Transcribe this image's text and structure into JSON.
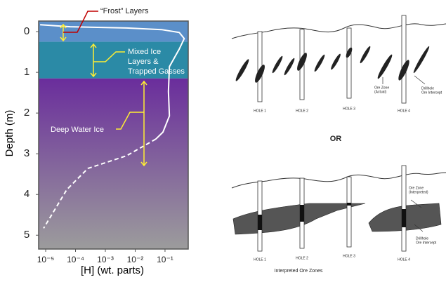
{
  "chart_data": {
    "type": "line",
    "xlabel": "[H] (wt. parts)",
    "ylabel": "Depth (m)",
    "xscale": "log",
    "xlim": [
      5.8e-06,
      0.6
    ],
    "ylim": [
      -0.26,
      5.34
    ],
    "y_inverted": true,
    "xticks": [
      {
        "value": 1e-05,
        "label": "10⁻⁵"
      },
      {
        "value": 0.0001,
        "label": "10⁻⁴"
      },
      {
        "value": 0.001,
        "label": "10⁻³"
      },
      {
        "value": 0.01,
        "label": "10⁻²"
      },
      {
        "value": 0.1,
        "label": "10⁻¹"
      }
    ],
    "yticks": [
      0,
      1,
      2,
      3,
      4,
      5
    ],
    "regions": [
      {
        "from": -0.26,
        "to": 0.25,
        "colors": [
          "#5b8fc9",
          "#5b8fc9"
        ]
      },
      {
        "from": 0.25,
        "to": 1.15,
        "colors": [
          "#2b8aa6",
          "#2b8aa6"
        ]
      },
      {
        "from": 1.15,
        "to": 5.34,
        "colors": [
          "#6a2d9c",
          "#9c9c9c"
        ]
      }
    ],
    "series": [
      {
        "color": "#ffffff",
        "dash": false,
        "x": [
          6.5e-06,
          6.6e-05,
          0.0051,
          0.076,
          0.3,
          0.44,
          0.3,
          0.14,
          0.13,
          0.14,
          0.085,
          0.049
        ],
        "values": [
          -0.17,
          -0.12,
          -0.09,
          -0.05,
          0.02,
          0.17,
          0.43,
          0.86,
          1.47,
          2.07,
          2.47,
          2.64
        ]
      },
      {
        "color": "#ffffff",
        "dash": true,
        "x": [
          0.049,
          0.0051,
          0.00026,
          5.1e-05,
          8.5e-06
        ],
        "values": [
          2.64,
          3.05,
          3.36,
          3.88,
          4.83
        ]
      }
    ],
    "annotations": {
      "frost": "“Frost” Layers",
      "mixed": [
        "Mixed Ice",
        "Layers &",
        "Trapped Gasses"
      ],
      "deep": "Deep Water Ice"
    }
  },
  "diagrams": {
    "top": {
      "holes": [
        "HOLE 1",
        "HOLE 2",
        "HOLE 3",
        "HOLE 4"
      ],
      "ore_zone": [
        "Ore Zone",
        "(Actual)"
      ],
      "intercept": [
        "Drillhole",
        "Ore Intercept"
      ]
    },
    "separator": "OR",
    "bottom": {
      "holes": [
        "HOLE 1",
        "HOLE 2",
        "HOLE 3",
        "HOLE 4"
      ],
      "ore_zone": [
        "Ore Zone",
        "(Interpreted)"
      ],
      "intercept": [
        "Drillhole",
        "Ore Intercept"
      ],
      "caption": "Interpreted Ore Zones"
    }
  }
}
